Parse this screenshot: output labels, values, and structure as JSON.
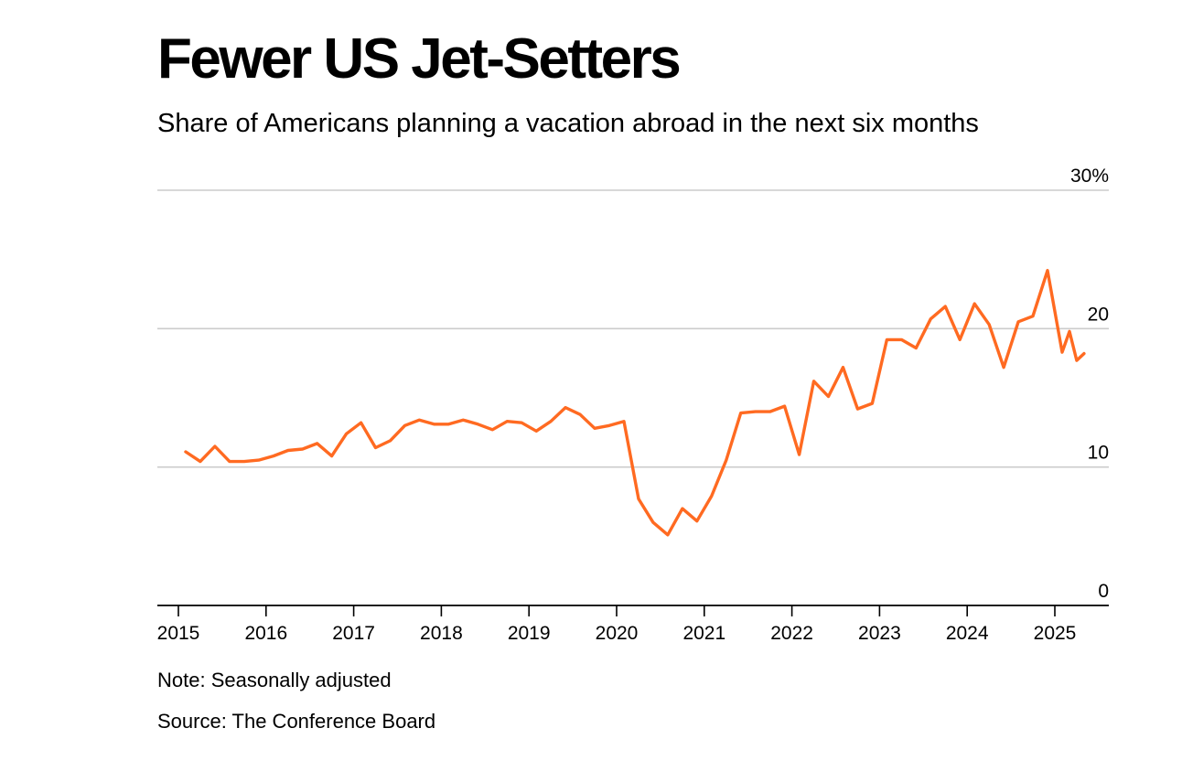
{
  "title": "Fewer US Jet-Setters",
  "subtitle": "Share of Americans planning a vacation abroad in the next six months",
  "note": "Note: Seasonally adjusted",
  "source": "Source: The Conference Board",
  "colors": {
    "line": "#ff6a21",
    "grid": "#cccccc",
    "axis": "#000000"
  },
  "chart_data": {
    "type": "line",
    "title": "Fewer US Jet-Setters",
    "subtitle": "Share of Americans planning a vacation abroad in the next six months",
    "ylim": [
      0,
      30
    ],
    "y_ticks": [
      0,
      10,
      20,
      30
    ],
    "y_tick_labels": [
      "0",
      "10",
      "20",
      "30%"
    ],
    "x_tick_labels": [
      "2015",
      "2016",
      "2017",
      "2018",
      "2019",
      "2020",
      "2021",
      "2022",
      "2023",
      "2024",
      "2025"
    ],
    "grid": true,
    "series": [
      {
        "values": [
          {
            "x": "2015-02",
            "y": 11.1
          },
          {
            "x": "2015-04",
            "y": 10.4
          },
          {
            "x": "2015-06",
            "y": 11.5
          },
          {
            "x": "2015-08",
            "y": 10.4
          },
          {
            "x": "2015-10",
            "y": 10.4
          },
          {
            "x": "2015-12",
            "y": 10.5
          },
          {
            "x": "2016-02",
            "y": 10.8
          },
          {
            "x": "2016-04",
            "y": 11.2
          },
          {
            "x": "2016-06",
            "y": 11.3
          },
          {
            "x": "2016-08",
            "y": 11.7
          },
          {
            "x": "2016-10",
            "y": 10.8
          },
          {
            "x": "2016-12",
            "y": 12.4
          },
          {
            "x": "2017-02",
            "y": 13.2
          },
          {
            "x": "2017-04",
            "y": 11.4
          },
          {
            "x": "2017-06",
            "y": 11.9
          },
          {
            "x": "2017-08",
            "y": 13.0
          },
          {
            "x": "2017-10",
            "y": 13.4
          },
          {
            "x": "2017-12",
            "y": 13.1
          },
          {
            "x": "2018-02",
            "y": 13.1
          },
          {
            "x": "2018-04",
            "y": 13.4
          },
          {
            "x": "2018-06",
            "y": 13.1
          },
          {
            "x": "2018-08",
            "y": 12.7
          },
          {
            "x": "2018-10",
            "y": 13.3
          },
          {
            "x": "2018-12",
            "y": 13.2
          },
          {
            "x": "2019-02",
            "y": 12.6
          },
          {
            "x": "2019-04",
            "y": 13.3
          },
          {
            "x": "2019-06",
            "y": 14.3
          },
          {
            "x": "2019-08",
            "y": 13.8
          },
          {
            "x": "2019-10",
            "y": 12.8
          },
          {
            "x": "2019-12",
            "y": 13.0
          },
          {
            "x": "2020-02",
            "y": 13.3
          },
          {
            "x": "2020-04",
            "y": 7.7
          },
          {
            "x": "2020-06",
            "y": 6.0
          },
          {
            "x": "2020-08",
            "y": 5.1
          },
          {
            "x": "2020-10",
            "y": 7.0
          },
          {
            "x": "2020-12",
            "y": 6.1
          },
          {
            "x": "2021-02",
            "y": 7.9
          },
          {
            "x": "2021-04",
            "y": 10.5
          },
          {
            "x": "2021-06",
            "y": 13.9
          },
          {
            "x": "2021-08",
            "y": 14.0
          },
          {
            "x": "2021-10",
            "y": 14.0
          },
          {
            "x": "2021-12",
            "y": 14.4
          },
          {
            "x": "2022-02",
            "y": 10.9
          },
          {
            "x": "2022-04",
            "y": 16.2
          },
          {
            "x": "2022-06",
            "y": 15.1
          },
          {
            "x": "2022-08",
            "y": 17.2
          },
          {
            "x": "2022-10",
            "y": 14.2
          },
          {
            "x": "2022-12",
            "y": 14.6
          },
          {
            "x": "2023-02",
            "y": 19.2
          },
          {
            "x": "2023-04",
            "y": 19.2
          },
          {
            "x": "2023-06",
            "y": 18.6
          },
          {
            "x": "2023-08",
            "y": 20.7
          },
          {
            "x": "2023-10",
            "y": 21.6
          },
          {
            "x": "2023-12",
            "y": 19.2
          },
          {
            "x": "2024-02",
            "y": 21.8
          },
          {
            "x": "2024-04",
            "y": 20.3
          },
          {
            "x": "2024-06",
            "y": 17.2
          },
          {
            "x": "2024-08",
            "y": 20.5
          },
          {
            "x": "2024-10",
            "y": 20.9
          },
          {
            "x": "2024-12",
            "y": 24.2
          },
          {
            "x": "2025-02",
            "y": 18.3
          },
          {
            "x": "2025-03",
            "y": 19.8
          },
          {
            "x": "2025-04",
            "y": 17.7
          },
          {
            "x": "2025-05",
            "y": 18.2
          }
        ]
      }
    ]
  }
}
